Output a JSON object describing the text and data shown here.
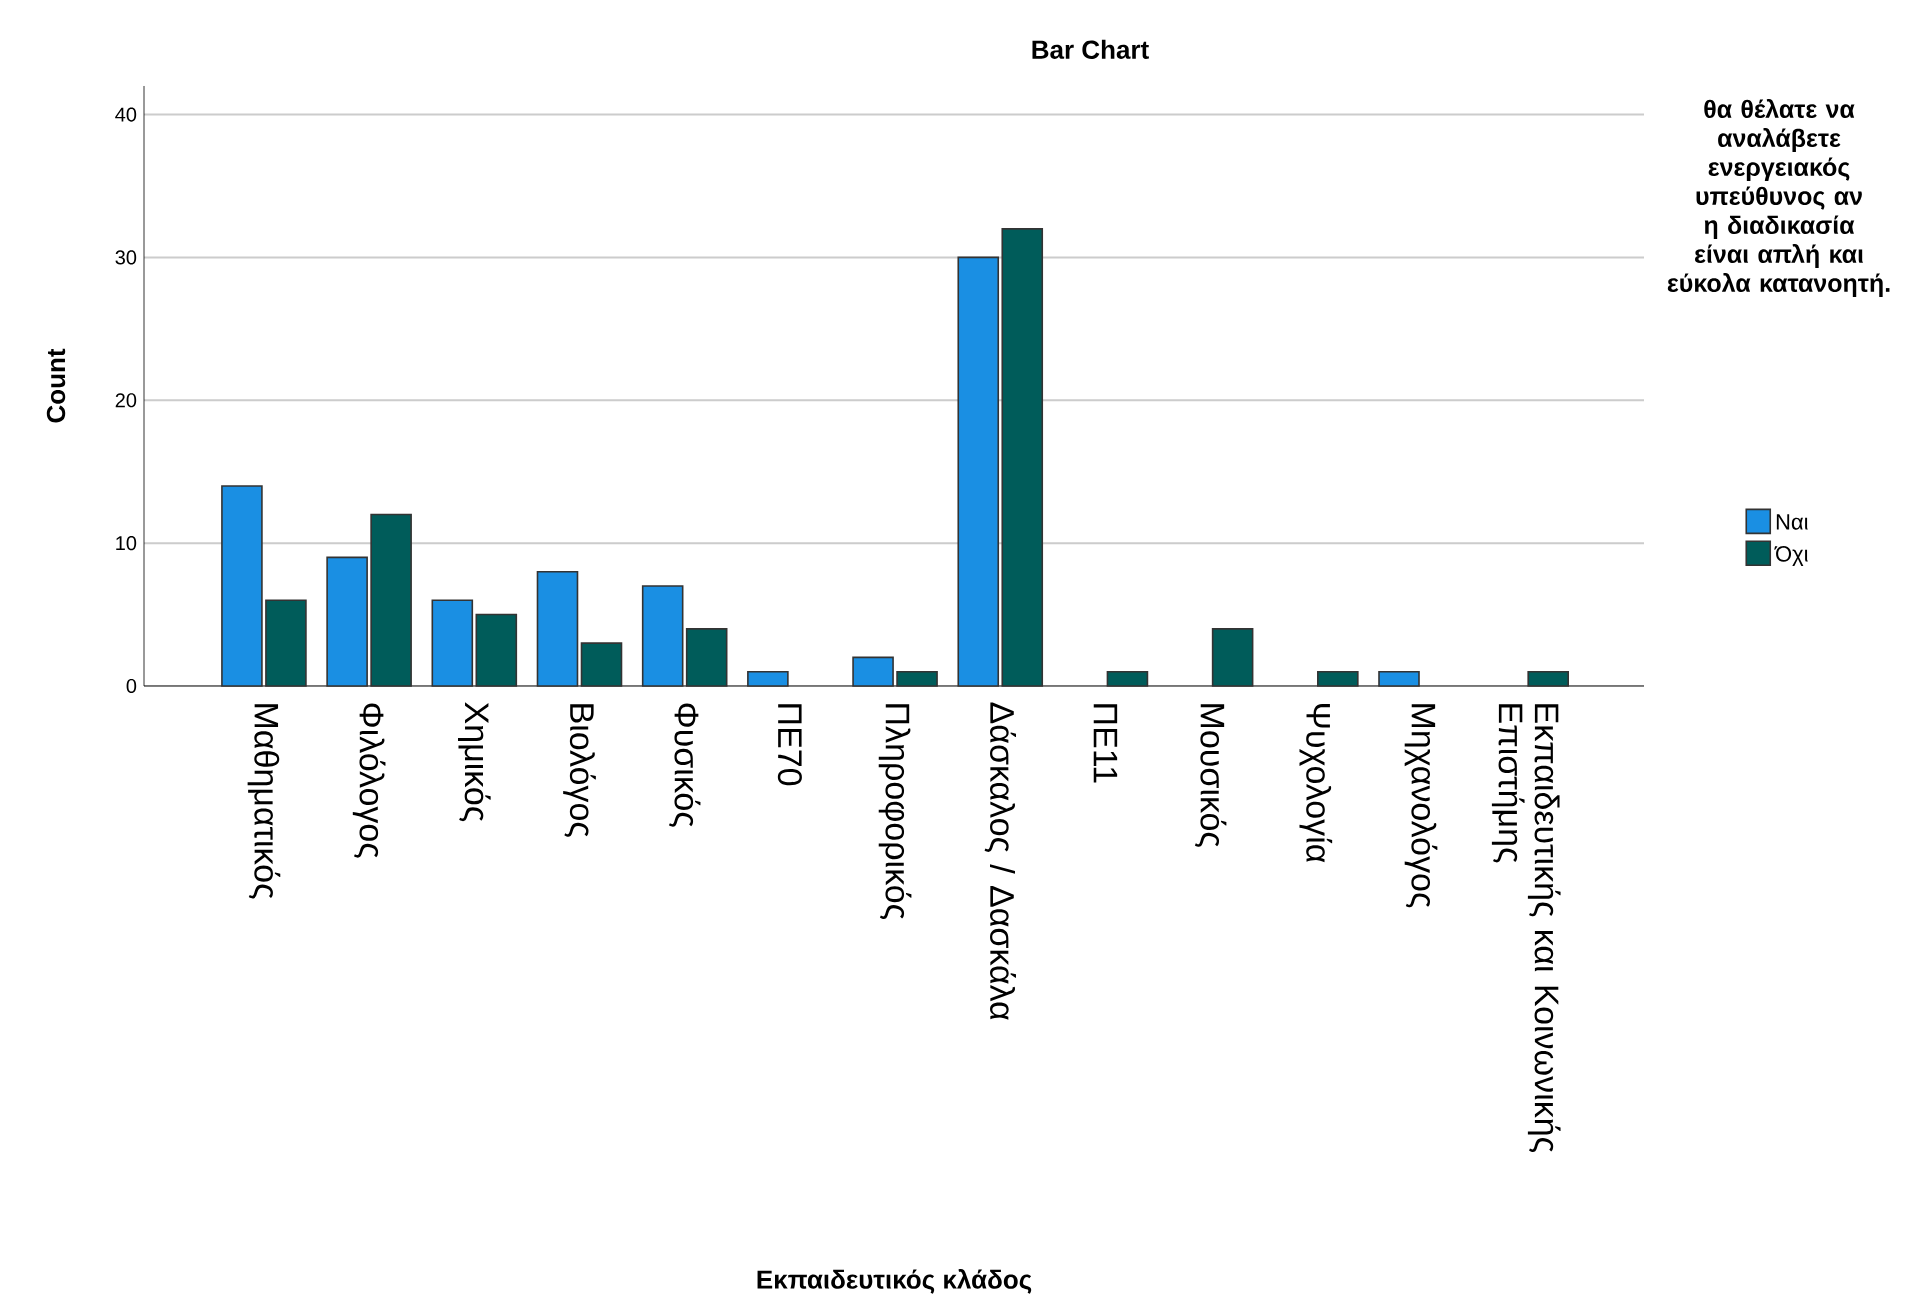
{
  "chart_data": {
    "type": "bar",
    "title": "Bar Chart",
    "xlabel": "Εκπαιδευτικός κλάδος",
    "ylabel": "Count",
    "legend_title": "θα θέλατε να αναλάβετε ενεργειακός υπεύθυνος αν η διαδικασία είναι απλή και εύκολα κατανοητή.",
    "categories": [
      "Μαθηματικός",
      "Φιλόλογος",
      "Χημικός",
      "Βιολόγος",
      "Φυσικός",
      "ΠΕ70",
      "Πληροφορικός",
      "Δάσκαλος / Δασκάλα",
      "ΠΕ11",
      "Μουσικός",
      "Ψυχολογία",
      "Μηχανολόγος",
      "Εκπαιδευτικής και Κοινωνικής Επιστήμης"
    ],
    "series": [
      {
        "name": "Ναι",
        "color": "#1a8fe3",
        "values": [
          14,
          9,
          6,
          8,
          7,
          1,
          2,
          30,
          null,
          null,
          null,
          1,
          null
        ]
      },
      {
        "name": "Όχι",
        "color": "#005c5a",
        "values": [
          6,
          12,
          5,
          3,
          4,
          null,
          1,
          32,
          1,
          4,
          1,
          null,
          1
        ]
      }
    ],
    "ylim": [
      0,
      42
    ],
    "yticks": [
      0,
      10,
      20,
      30,
      40
    ],
    "grid": "y",
    "legend": "right"
  }
}
